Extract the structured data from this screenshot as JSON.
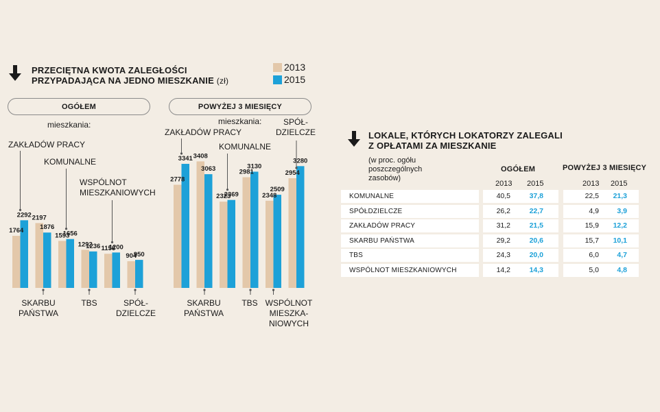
{
  "colors": {
    "y2013": "#e3c8aa",
    "y2015": "#1da1d8",
    "background": "#f3ede4"
  },
  "left": {
    "arrow_icon": "down-arrow-icon",
    "title_line1": "PRZECIĘTNA KWOTA ZALEGŁOŚCI",
    "title_line2": "PRZYPADAJĄCA NA JEDNO MIESZKANIE",
    "title_unit": "(zł)",
    "legend": [
      "2013",
      "2015"
    ],
    "subtitle": "mieszkania:"
  },
  "chart_data": [
    {
      "type": "bar",
      "title": "OGÓŁEM",
      "categories": [
        "ZAKŁADÓW PRACY",
        "SKARBU PAŃSTWA",
        "KOMUNALNE",
        "TBS",
        "WSPÓLNOT MIESZKANIOWYCH",
        "SPÓŁ-DZIELCZE"
      ],
      "category_labels": [
        {
          "lines": [
            "ZAKŁADÓW PRACY"
          ],
          "where": "above"
        },
        {
          "lines": [
            "SKARBU",
            "PAŃSTWA"
          ],
          "where": "below"
        },
        {
          "lines": [
            "KOMUNALNE"
          ],
          "where": "above"
        },
        {
          "lines": [
            "TBS"
          ],
          "where": "below"
        },
        {
          "lines": [
            "WSPÓLNOT",
            "MIESZKANIOWYCH"
          ],
          "where": "above"
        },
        {
          "lines": [
            "SPÓŁ-",
            "DZIELCZE"
          ],
          "where": "below"
        }
      ],
      "series": [
        {
          "name": "2013",
          "values": [
            1764,
            2197,
            1593,
            1292,
            1156,
            904
          ]
        },
        {
          "name": "2015",
          "values": [
            2292,
            1876,
            1656,
            1236,
            1200,
            950
          ]
        }
      ],
      "ylim": [
        0,
        3600
      ]
    },
    {
      "type": "bar",
      "title": "POWYŻEJ 3 MIESIĘCY",
      "categories": [
        "ZAKŁADÓW PRACY",
        "SKARBU PAŃSTWA",
        "KOMUNALNE",
        "TBS",
        "WSPÓLNOT MIESZKANIOWYCH",
        "SPÓŁ-DZIELCZE"
      ],
      "category_labels": [
        {
          "lines": [
            "ZAKŁADÓW PRACY"
          ],
          "where": "above"
        },
        {
          "lines": [
            "SKARBU",
            "PAŃSTWA"
          ],
          "where": "below"
        },
        {
          "lines": [
            "KOMUNALNE"
          ],
          "where": "above"
        },
        {
          "lines": [
            "TBS"
          ],
          "where": "below"
        },
        {
          "lines": [
            "WSPÓLNOT",
            "MIESZKA-",
            "NIOWYCH"
          ],
          "where": "below"
        },
        {
          "lines": [
            "SPÓŁ-",
            "DZIELCZE"
          ],
          "where": "above"
        }
      ],
      "series": [
        {
          "name": "2013",
          "values": [
            2778,
            3408,
            2323,
            2981,
            2348,
            2954
          ]
        },
        {
          "name": "2015",
          "values": [
            3341,
            3063,
            2369,
            3130,
            2509,
            3280
          ]
        }
      ],
      "ylim": [
        0,
        3600
      ]
    },
    {
      "type": "table",
      "title_line1": "LOKALE, KTÓRYCH LOKATORZY ZALEGALI",
      "title_line2": "Z OPŁATAMI ZA MIESZKANIE",
      "note": [
        "(w proc. ogółu",
        "poszczególnych",
        "zasobów)"
      ],
      "groups": [
        "OGÓŁEM",
        "POWYŻEJ 3 MIESIĘCY"
      ],
      "years": [
        "2013",
        "2015"
      ],
      "rows": [
        {
          "label": "KOMUNALNE",
          "values": [
            "40,5",
            "37,8",
            "22,5",
            "21,3"
          ]
        },
        {
          "label": "SPÓŁDZIELCZE",
          "values": [
            "26,2",
            "22,7",
            "4,9",
            "3,9"
          ]
        },
        {
          "label": "ZAKŁADÓW PRACY",
          "values": [
            "31,2",
            "21,5",
            "15,9",
            "12,2"
          ]
        },
        {
          "label": "SKARBU PAŃSTWA",
          "values": [
            "29,2",
            "20,6",
            "15,7",
            "10,1"
          ]
        },
        {
          "label": "TBS",
          "values": [
            "24,3",
            "20,0",
            "6,0",
            "4,7"
          ]
        },
        {
          "label": "WSPÓLNOT MIESZKANIOWYCH",
          "values": [
            "14,2",
            "14,3",
            "5,0",
            "4,8"
          ]
        }
      ]
    }
  ]
}
